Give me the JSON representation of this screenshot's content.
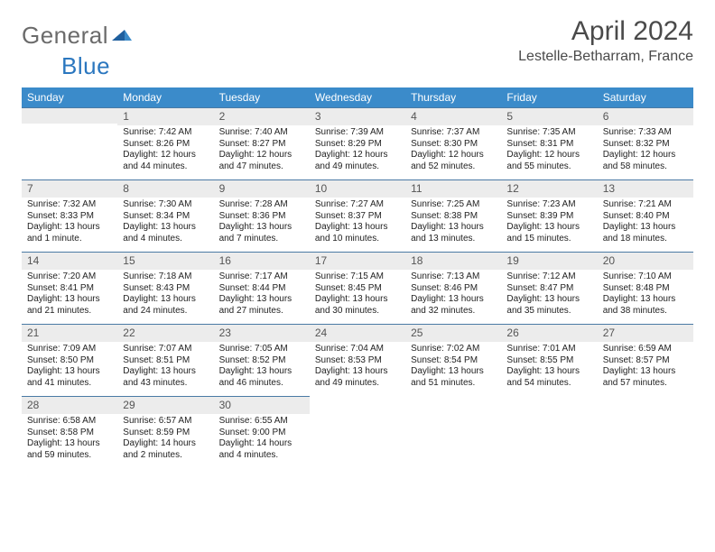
{
  "brand": {
    "part1": "General",
    "part2": "Blue"
  },
  "title": "April 2024",
  "location": "Lestelle-Betharram, France",
  "colors": {
    "header_bg": "#3b8bca",
    "header_text": "#ffffff",
    "daynum_bg": "#ececec",
    "row_border": "#4a7aa5",
    "logo_gray": "#6b6b6b",
    "logo_blue": "#2b77bf"
  },
  "weekdays": [
    "Sunday",
    "Monday",
    "Tuesday",
    "Wednesday",
    "Thursday",
    "Friday",
    "Saturday"
  ],
  "weeks": [
    [
      null,
      {
        "n": "1",
        "sr": "Sunrise: 7:42 AM",
        "ss": "Sunset: 8:26 PM",
        "dl1": "Daylight: 12 hours",
        "dl2": "and 44 minutes."
      },
      {
        "n": "2",
        "sr": "Sunrise: 7:40 AM",
        "ss": "Sunset: 8:27 PM",
        "dl1": "Daylight: 12 hours",
        "dl2": "and 47 minutes."
      },
      {
        "n": "3",
        "sr": "Sunrise: 7:39 AM",
        "ss": "Sunset: 8:29 PM",
        "dl1": "Daylight: 12 hours",
        "dl2": "and 49 minutes."
      },
      {
        "n": "4",
        "sr": "Sunrise: 7:37 AM",
        "ss": "Sunset: 8:30 PM",
        "dl1": "Daylight: 12 hours",
        "dl2": "and 52 minutes."
      },
      {
        "n": "5",
        "sr": "Sunrise: 7:35 AM",
        "ss": "Sunset: 8:31 PM",
        "dl1": "Daylight: 12 hours",
        "dl2": "and 55 minutes."
      },
      {
        "n": "6",
        "sr": "Sunrise: 7:33 AM",
        "ss": "Sunset: 8:32 PM",
        "dl1": "Daylight: 12 hours",
        "dl2": "and 58 minutes."
      }
    ],
    [
      {
        "n": "7",
        "sr": "Sunrise: 7:32 AM",
        "ss": "Sunset: 8:33 PM",
        "dl1": "Daylight: 13 hours",
        "dl2": "and 1 minute."
      },
      {
        "n": "8",
        "sr": "Sunrise: 7:30 AM",
        "ss": "Sunset: 8:34 PM",
        "dl1": "Daylight: 13 hours",
        "dl2": "and 4 minutes."
      },
      {
        "n": "9",
        "sr": "Sunrise: 7:28 AM",
        "ss": "Sunset: 8:36 PM",
        "dl1": "Daylight: 13 hours",
        "dl2": "and 7 minutes."
      },
      {
        "n": "10",
        "sr": "Sunrise: 7:27 AM",
        "ss": "Sunset: 8:37 PM",
        "dl1": "Daylight: 13 hours",
        "dl2": "and 10 minutes."
      },
      {
        "n": "11",
        "sr": "Sunrise: 7:25 AM",
        "ss": "Sunset: 8:38 PM",
        "dl1": "Daylight: 13 hours",
        "dl2": "and 13 minutes."
      },
      {
        "n": "12",
        "sr": "Sunrise: 7:23 AM",
        "ss": "Sunset: 8:39 PM",
        "dl1": "Daylight: 13 hours",
        "dl2": "and 15 minutes."
      },
      {
        "n": "13",
        "sr": "Sunrise: 7:21 AM",
        "ss": "Sunset: 8:40 PM",
        "dl1": "Daylight: 13 hours",
        "dl2": "and 18 minutes."
      }
    ],
    [
      {
        "n": "14",
        "sr": "Sunrise: 7:20 AM",
        "ss": "Sunset: 8:41 PM",
        "dl1": "Daylight: 13 hours",
        "dl2": "and 21 minutes."
      },
      {
        "n": "15",
        "sr": "Sunrise: 7:18 AM",
        "ss": "Sunset: 8:43 PM",
        "dl1": "Daylight: 13 hours",
        "dl2": "and 24 minutes."
      },
      {
        "n": "16",
        "sr": "Sunrise: 7:17 AM",
        "ss": "Sunset: 8:44 PM",
        "dl1": "Daylight: 13 hours",
        "dl2": "and 27 minutes."
      },
      {
        "n": "17",
        "sr": "Sunrise: 7:15 AM",
        "ss": "Sunset: 8:45 PM",
        "dl1": "Daylight: 13 hours",
        "dl2": "and 30 minutes."
      },
      {
        "n": "18",
        "sr": "Sunrise: 7:13 AM",
        "ss": "Sunset: 8:46 PM",
        "dl1": "Daylight: 13 hours",
        "dl2": "and 32 minutes."
      },
      {
        "n": "19",
        "sr": "Sunrise: 7:12 AM",
        "ss": "Sunset: 8:47 PM",
        "dl1": "Daylight: 13 hours",
        "dl2": "and 35 minutes."
      },
      {
        "n": "20",
        "sr": "Sunrise: 7:10 AM",
        "ss": "Sunset: 8:48 PM",
        "dl1": "Daylight: 13 hours",
        "dl2": "and 38 minutes."
      }
    ],
    [
      {
        "n": "21",
        "sr": "Sunrise: 7:09 AM",
        "ss": "Sunset: 8:50 PM",
        "dl1": "Daylight: 13 hours",
        "dl2": "and 41 minutes."
      },
      {
        "n": "22",
        "sr": "Sunrise: 7:07 AM",
        "ss": "Sunset: 8:51 PM",
        "dl1": "Daylight: 13 hours",
        "dl2": "and 43 minutes."
      },
      {
        "n": "23",
        "sr": "Sunrise: 7:05 AM",
        "ss": "Sunset: 8:52 PM",
        "dl1": "Daylight: 13 hours",
        "dl2": "and 46 minutes."
      },
      {
        "n": "24",
        "sr": "Sunrise: 7:04 AM",
        "ss": "Sunset: 8:53 PM",
        "dl1": "Daylight: 13 hours",
        "dl2": "and 49 minutes."
      },
      {
        "n": "25",
        "sr": "Sunrise: 7:02 AM",
        "ss": "Sunset: 8:54 PM",
        "dl1": "Daylight: 13 hours",
        "dl2": "and 51 minutes."
      },
      {
        "n": "26",
        "sr": "Sunrise: 7:01 AM",
        "ss": "Sunset: 8:55 PM",
        "dl1": "Daylight: 13 hours",
        "dl2": "and 54 minutes."
      },
      {
        "n": "27",
        "sr": "Sunrise: 6:59 AM",
        "ss": "Sunset: 8:57 PM",
        "dl1": "Daylight: 13 hours",
        "dl2": "and 57 minutes."
      }
    ],
    [
      {
        "n": "28",
        "sr": "Sunrise: 6:58 AM",
        "ss": "Sunset: 8:58 PM",
        "dl1": "Daylight: 13 hours",
        "dl2": "and 59 minutes."
      },
      {
        "n": "29",
        "sr": "Sunrise: 6:57 AM",
        "ss": "Sunset: 8:59 PM",
        "dl1": "Daylight: 14 hours",
        "dl2": "and 2 minutes."
      },
      {
        "n": "30",
        "sr": "Sunrise: 6:55 AM",
        "ss": "Sunset: 9:00 PM",
        "dl1": "Daylight: 14 hours",
        "dl2": "and 4 minutes."
      },
      null,
      null,
      null,
      null
    ]
  ]
}
